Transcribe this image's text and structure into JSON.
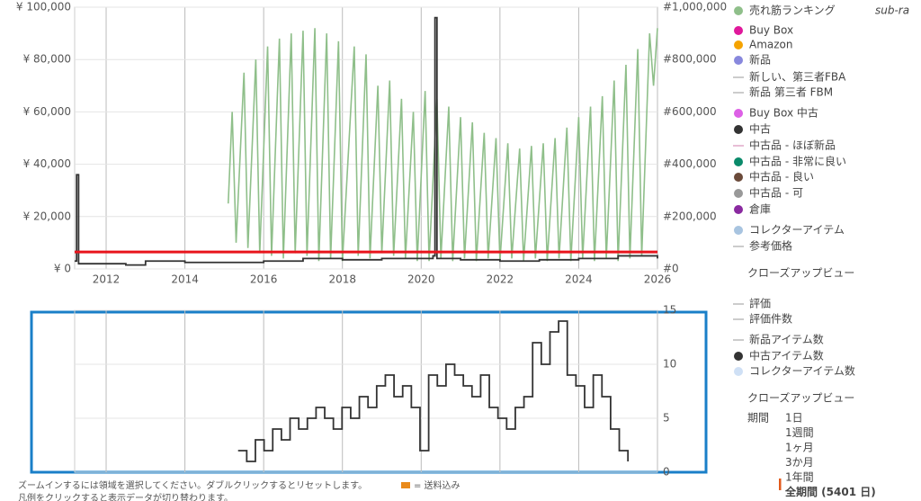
{
  "chart_data": [
    {
      "type": "line",
      "xlim": [
        2011.2,
        2026
      ],
      "xticks": [
        2012,
        2014,
        2016,
        2018,
        2020,
        2022,
        2024,
        2026
      ],
      "ylim": [
        0,
        100000
      ],
      "yticks": [
        {
          "value": 0,
          "label": "¥ 0"
        },
        {
          "value": 20000,
          "label": "¥ 20,000"
        },
        {
          "value": 40000,
          "label": "¥ 40,000"
        },
        {
          "value": 60000,
          "label": "¥ 60,000"
        },
        {
          "value": 80000,
          "label": "¥ 80,000"
        },
        {
          "value": 100000,
          "label": "¥ 100,000"
        }
      ],
      "y2lim": [
        0,
        1000000
      ],
      "y2ticks": [
        {
          "value": 0,
          "label": "#0"
        },
        {
          "value": 200000,
          "label": "#200,000"
        },
        {
          "value": 400000,
          "label": "#400,000"
        },
        {
          "value": 600000,
          "label": "#600,000"
        },
        {
          "value": 800000,
          "label": "#800,000"
        },
        {
          "value": 1000000,
          "label": "#1,000,000"
        }
      ],
      "hline": {
        "value": 6500,
        "color": "#e8141c"
      },
      "series": [
        {
          "name": "売れ筋ランキング",
          "color": "#8fbf8a",
          "axis": "y2",
          "step": false,
          "x": [
            2015.1,
            2015.2,
            2015.3,
            2015.5,
            2015.6,
            2015.8,
            2015.9,
            2016.1,
            2016.2,
            2016.4,
            2016.5,
            2016.7,
            2016.8,
            2017.0,
            2017.1,
            2017.3,
            2017.4,
            2017.6,
            2017.7,
            2017.9,
            2018.0,
            2018.3,
            2018.4,
            2018.6,
            2018.7,
            2018.9,
            2019.0,
            2019.2,
            2019.3,
            2019.5,
            2019.6,
            2019.8,
            2019.9,
            2020.1,
            2020.2,
            2020.4,
            2020.5,
            2020.7,
            2020.8,
            2021.0,
            2021.1,
            2021.3,
            2021.4,
            2021.6,
            2021.7,
            2021.9,
            2022.0,
            2022.2,
            2022.3,
            2022.5,
            2022.6,
            2022.8,
            2022.9,
            2023.1,
            2023.2,
            2023.4,
            2023.5,
            2023.7,
            2023.8,
            2024.0,
            2024.1,
            2024.3,
            2024.4,
            2024.6,
            2024.7,
            2024.9,
            2025.0,
            2025.2,
            2025.3,
            2025.5,
            2025.6,
            2025.8,
            2025.9,
            2026.0
          ],
          "values": [
            250000,
            600000,
            100000,
            750000,
            80000,
            800000,
            60000,
            850000,
            50000,
            880000,
            40000,
            900000,
            60000,
            910000,
            50000,
            920000,
            30000,
            900000,
            40000,
            870000,
            30000,
            850000,
            50000,
            820000,
            40000,
            700000,
            60000,
            720000,
            50000,
            650000,
            40000,
            600000,
            30000,
            680000,
            30000,
            650000,
            40000,
            620000,
            30000,
            580000,
            40000,
            560000,
            30000,
            520000,
            40000,
            500000,
            30000,
            480000,
            40000,
            460000,
            30000,
            470000,
            40000,
            480000,
            30000,
            500000,
            40000,
            540000,
            30000,
            580000,
            40000,
            620000,
            30000,
            660000,
            40000,
            720000,
            30000,
            780000,
            40000,
            840000,
            50000,
            900000,
            700000,
            920000
          ]
        },
        {
          "name": "中古",
          "color": "#333333",
          "step": true,
          "x": [
            2011.2,
            2011.25,
            2011.3,
            2012.5,
            2013.0,
            2014.0,
            2015.0,
            2016.0,
            2017.0,
            2018.0,
            2019.0,
            2020.3,
            2020.35,
            2020.4,
            2021.0,
            2022.0,
            2023.0,
            2024.0,
            2025.0,
            2026.0
          ],
          "values": [
            3000,
            36000,
            2000,
            1500,
            3000,
            2500,
            2500,
            3000,
            4000,
            3500,
            4000,
            5000,
            96000,
            4000,
            3500,
            3000,
            3500,
            4000,
            5000,
            4000
          ]
        }
      ]
    },
    {
      "type": "line",
      "xlim": [
        2011.2,
        2026
      ],
      "xticks": [
        2012,
        2014,
        2016,
        2018,
        2020,
        2022,
        2024,
        2026
      ],
      "ylim": [
        0,
        15
      ],
      "yticks": [
        0,
        5,
        10,
        15
      ],
      "series": [
        {
          "name": "中古アイテム数",
          "color": "#333333",
          "step": true,
          "x": [
            2015.35,
            2015.57,
            2015.79,
            2016.01,
            2016.23,
            2016.45,
            2016.67,
            2016.89,
            2017.11,
            2017.33,
            2017.55,
            2017.77,
            2017.99,
            2018.21,
            2018.43,
            2018.65,
            2018.87,
            2019.09,
            2019.31,
            2019.53,
            2019.75,
            2019.97,
            2020.19,
            2020.41,
            2020.63,
            2020.85,
            2021.07,
            2021.29,
            2021.51,
            2021.73,
            2021.95,
            2022.17,
            2022.39,
            2022.61,
            2022.83,
            2023.05,
            2023.27,
            2023.49,
            2023.71,
            2023.93,
            2024.15,
            2024.37,
            2024.59,
            2024.81,
            2025.03,
            2025.25
          ],
          "values": [
            2,
            1,
            3,
            2,
            4,
            3,
            5,
            4,
            5,
            6,
            5,
            4,
            6,
            5,
            7,
            6,
            8,
            9,
            7,
            8,
            6,
            2,
            9,
            8,
            10,
            9,
            8,
            7,
            9,
            6,
            5,
            4,
            6,
            7,
            12,
            10,
            13,
            14,
            9,
            8,
            6,
            9,
            7,
            4,
            2,
            1
          ]
        }
      ]
    }
  ],
  "legend_top": [
    {
      "name": "売れ筋ランキング",
      "color": "#8fbf8a",
      "marker": "dot"
    },
    {
      "name": "Buy Box",
      "color": "#e0189b",
      "marker": "dot"
    },
    {
      "name": "Amazon",
      "color": "#f5a300",
      "marker": "dot"
    },
    {
      "name": "新品",
      "color": "#8888dd",
      "marker": "dot"
    },
    {
      "name": "新しい、第三者FBA",
      "color": "#bbbbbb",
      "marker": "line"
    },
    {
      "name": "新品 第三者 FBM",
      "color": "#bbbbbb",
      "marker": "line"
    },
    {
      "name": "Buy Box 中古",
      "color": "#dd60e6",
      "marker": "dot"
    },
    {
      "name": "中古",
      "color": "#333333",
      "marker": "dot"
    },
    {
      "name": "中古品 - ほぼ新品",
      "color": "#e0a8c8",
      "marker": "line"
    },
    {
      "name": "中古品 - 非常に良い",
      "color": "#0a8a6a",
      "marker": "dot"
    },
    {
      "name": "中古品 - 良い",
      "color": "#6b4a3a",
      "marker": "dot"
    },
    {
      "name": "中古品 - 可",
      "color": "#999999",
      "marker": "dot"
    },
    {
      "name": "倉庫",
      "color": "#8a2aa0",
      "marker": "dot"
    },
    {
      "name": "コレクターアイテム",
      "color": "#a8c4e0",
      "marker": "dot"
    },
    {
      "name": "参考価格",
      "color": "#bbbbbb",
      "marker": "line"
    }
  ],
  "legend_bottom": [
    {
      "name": "評価",
      "color": "#bbbbbb",
      "marker": "line"
    },
    {
      "name": "評価件数",
      "color": "#bbbbbb",
      "marker": "line"
    },
    {
      "name": "新品アイテム数",
      "color": "#bbbbbb",
      "marker": "line"
    },
    {
      "name": "中古アイテム数",
      "color": "#333333",
      "marker": "dot"
    },
    {
      "name": "コレクターアイテム数",
      "color": "#cfe0f5",
      "marker": "dot"
    }
  ],
  "sub_rank": "sub-ra",
  "closeup_top": "クローズアップビュー",
  "closeup_bottom": "クローズアップビュー",
  "period": {
    "label": "期間",
    "options": [
      "1日",
      "1週間",
      "1ヶ月",
      "3か月",
      "1年間",
      "全期間 (5401 日)"
    ]
  },
  "footer": {
    "zoom": "ズームインするには領域を選択してください。ダブルクリックするとリセットします。",
    "shipping": "= 送料込み",
    "legend_hint": "凡例をクリックすると表示データが切り替わります。"
  }
}
